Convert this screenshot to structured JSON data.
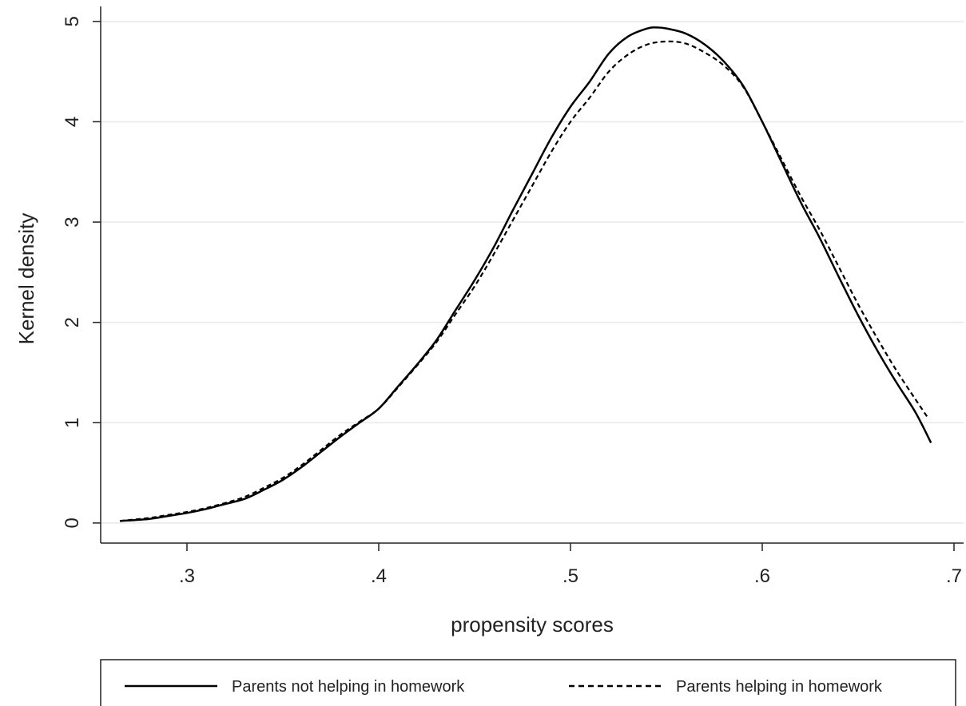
{
  "chart_data": {
    "type": "line",
    "title": "",
    "xlabel": "propensity scores",
    "ylabel": "Kernel density",
    "xlim": [
      0.255,
      0.705
    ],
    "ylim": [
      -0.2,
      5.15
    ],
    "x_ticks": [
      0.3,
      0.4,
      0.5,
      0.6,
      0.7
    ],
    "x_tick_labels": [
      ".3",
      ".4",
      ".5",
      ".6",
      ".7"
    ],
    "y_ticks": [
      0,
      1,
      2,
      3,
      4,
      5
    ],
    "y_tick_labels": [
      "0",
      "1",
      "2",
      "3",
      "4",
      "5"
    ],
    "grid": true,
    "legend_position": "bottom",
    "series": [
      {
        "name": "Parents not helping in homework",
        "style": "solid",
        "color": "#000000",
        "x": [
          0.265,
          0.28,
          0.29,
          0.3,
          0.31,
          0.32,
          0.33,
          0.34,
          0.35,
          0.36,
          0.37,
          0.38,
          0.39,
          0.4,
          0.41,
          0.42,
          0.43,
          0.44,
          0.45,
          0.46,
          0.47,
          0.48,
          0.49,
          0.5,
          0.51,
          0.52,
          0.53,
          0.54,
          0.545,
          0.55,
          0.56,
          0.57,
          0.58,
          0.59,
          0.6,
          0.61,
          0.62,
          0.63,
          0.64,
          0.65,
          0.66,
          0.67,
          0.68,
          0.688
        ],
        "y": [
          0.02,
          0.04,
          0.07,
          0.1,
          0.14,
          0.19,
          0.24,
          0.33,
          0.43,
          0.56,
          0.71,
          0.86,
          1.0,
          1.14,
          1.36,
          1.58,
          1.82,
          2.12,
          2.42,
          2.75,
          3.12,
          3.48,
          3.84,
          4.15,
          4.4,
          4.68,
          4.85,
          4.93,
          4.94,
          4.93,
          4.88,
          4.77,
          4.6,
          4.36,
          4.0,
          3.6,
          3.2,
          2.84,
          2.45,
          2.07,
          1.72,
          1.4,
          1.1,
          0.8
        ]
      },
      {
        "name": "Parents helping in homework",
        "style": "dashed",
        "color": "#000000",
        "x": [
          0.265,
          0.28,
          0.29,
          0.3,
          0.31,
          0.32,
          0.33,
          0.34,
          0.35,
          0.36,
          0.37,
          0.38,
          0.39,
          0.4,
          0.41,
          0.42,
          0.43,
          0.44,
          0.45,
          0.46,
          0.47,
          0.48,
          0.49,
          0.5,
          0.51,
          0.52,
          0.53,
          0.54,
          0.55,
          0.56,
          0.57,
          0.58,
          0.59,
          0.6,
          0.61,
          0.62,
          0.63,
          0.64,
          0.65,
          0.66,
          0.67,
          0.68,
          0.686
        ],
        "y": [
          0.02,
          0.05,
          0.08,
          0.11,
          0.15,
          0.2,
          0.26,
          0.35,
          0.45,
          0.58,
          0.73,
          0.88,
          1.01,
          1.14,
          1.35,
          1.57,
          1.8,
          2.08,
          2.36,
          2.68,
          3.02,
          3.36,
          3.7,
          4.0,
          4.24,
          4.5,
          4.67,
          4.77,
          4.8,
          4.78,
          4.69,
          4.56,
          4.35,
          4.0,
          3.63,
          3.26,
          2.92,
          2.55,
          2.18,
          1.84,
          1.52,
          1.23,
          1.06
        ]
      }
    ]
  }
}
